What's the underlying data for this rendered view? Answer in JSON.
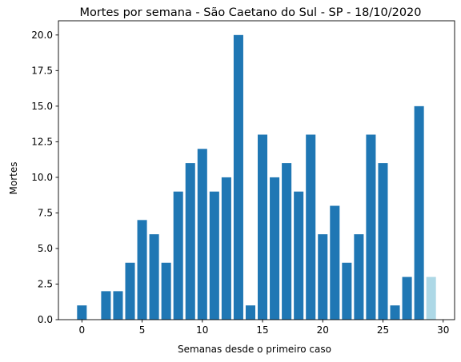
{
  "chart_data": {
    "type": "bar",
    "title": "Mortes por semana - São Caetano do Sul - SP - 18/10/2020",
    "xlabel": "Semanas desde o primeiro caso",
    "ylabel": "Mortes",
    "x": [
      0,
      1,
      2,
      3,
      4,
      5,
      6,
      7,
      8,
      9,
      10,
      11,
      12,
      13,
      14,
      15,
      16,
      17,
      18,
      19,
      20,
      21,
      22,
      23,
      24,
      25,
      26,
      27,
      28,
      29
    ],
    "values": [
      1,
      0,
      2,
      2,
      4,
      7,
      6,
      4,
      9,
      11,
      12,
      9,
      10,
      20,
      1,
      13,
      10,
      11,
      9,
      13,
      6,
      8,
      4,
      6,
      13,
      11,
      1,
      3,
      15,
      3
    ],
    "xlim": [
      -1.95,
      30.95
    ],
    "ylim": [
      0,
      21
    ],
    "xticks": [
      0,
      5,
      10,
      15,
      20,
      25,
      30
    ],
    "xtick_labels": [
      "0",
      "5",
      "10",
      "15",
      "20",
      "25",
      "30"
    ],
    "yticks": [
      0,
      2.5,
      5,
      7.5,
      10,
      12.5,
      15,
      17.5,
      20
    ],
    "ytick_labels": [
      "0.0",
      "2.5",
      "5.0",
      "7.5",
      "10.0",
      "12.5",
      "15.0",
      "17.5",
      "20.0"
    ],
    "bar_color": "#1f77b4",
    "highlight_color": "#add8e6",
    "highlight_index": 29,
    "grid": false,
    "legend": "none"
  }
}
